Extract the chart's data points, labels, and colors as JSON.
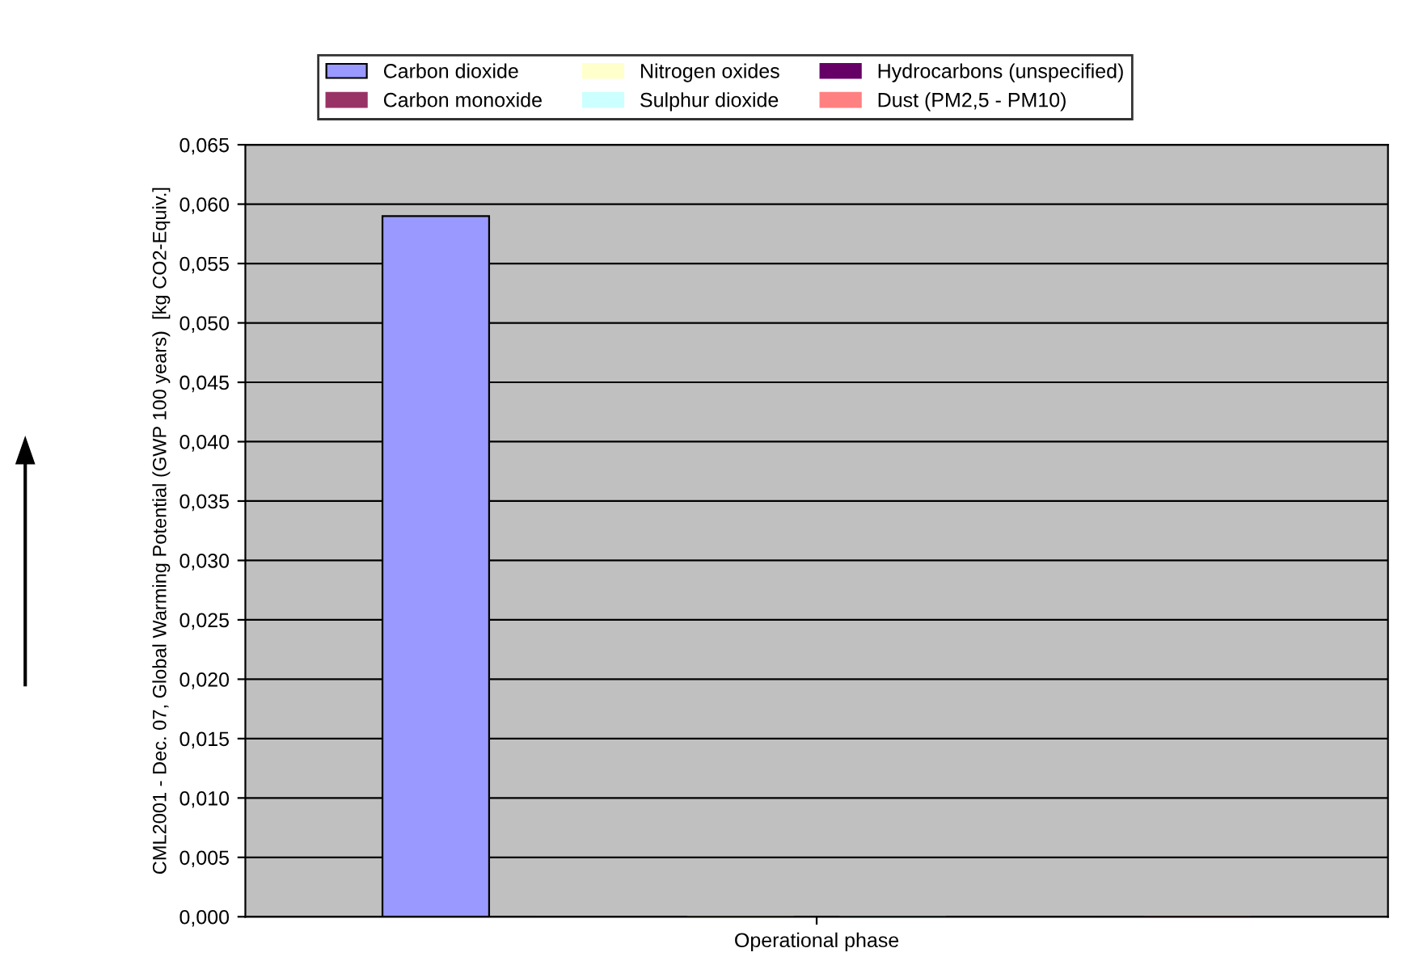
{
  "chart_data": {
    "type": "bar",
    "ylabel": "CML2001 - Dec. 07, Global Warming Potential (GWP 100 years)  [kg CO2-Equiv.]",
    "categories": [
      "Operational phase"
    ],
    "series": [
      {
        "name": "Carbon dioxide",
        "color": "#9999ff",
        "values": [
          0.059
        ]
      },
      {
        "name": "Carbon monoxide",
        "color": "#993366",
        "values": [
          0
        ]
      },
      {
        "name": "Nitrogen oxides",
        "color": "#ffffcc",
        "values": [
          0
        ]
      },
      {
        "name": "Sulphur dioxide",
        "color": "#ccffff",
        "values": [
          0
        ]
      },
      {
        "name": "Hydrocarbons (unspecified)",
        "color": "#660066",
        "values": [
          0
        ]
      },
      {
        "name": "Dust (PM2,5 - PM10)",
        "color": "#ff8080",
        "values": [
          0
        ]
      }
    ],
    "ylim": [
      0,
      0.065
    ],
    "yticks": [
      {
        "value": 0,
        "label": "0,000"
      },
      {
        "value": 0.005,
        "label": "0,005"
      },
      {
        "value": 0.01,
        "label": "0,010"
      },
      {
        "value": 0.015,
        "label": "0,015"
      },
      {
        "value": 0.02,
        "label": "0,020"
      },
      {
        "value": 0.025,
        "label": "0,025"
      },
      {
        "value": 0.03,
        "label": "0,030"
      },
      {
        "value": 0.035,
        "label": "0,035"
      },
      {
        "value": 0.04,
        "label": "0,040"
      },
      {
        "value": 0.045,
        "label": "0,045"
      },
      {
        "value": 0.05,
        "label": "0,050"
      },
      {
        "value": 0.055,
        "label": "0,055"
      },
      {
        "value": 0.06,
        "label": "0,060"
      },
      {
        "value": 0.065,
        "label": "0,065"
      }
    ],
    "grid": "y",
    "legend": "top"
  }
}
